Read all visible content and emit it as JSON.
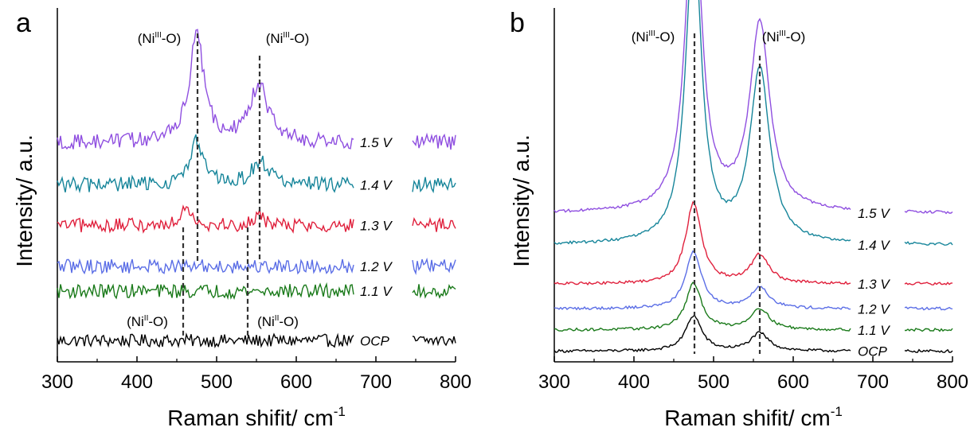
{
  "colors": {
    "OCP": "#000000",
    "1.1 V": "#1a7a1a",
    "1.2 V": "#5b6ee6",
    "1.3 V": "#e0203c",
    "1.4 V": "#16859a",
    "1.5 V": "#8f4fe0"
  },
  "chart_data": [
    {
      "type": "line",
      "panel": "a",
      "xlabel": "Raman shifit/ cm",
      "xlabel_sup": "-1",
      "ylabel": "Intensity/ a.u.",
      "xlim": [
        300,
        800
      ],
      "x_ticks": [
        "300",
        "400",
        "500",
        "600",
        "700",
        "800"
      ],
      "x_gap": [
        673,
        745
      ],
      "series": [
        {
          "name": "OCP",
          "baseline": 0.06,
          "noise": 0.018,
          "peaks": []
        },
        {
          "name": "1.1 V",
          "baseline": 0.2,
          "noise": 0.02,
          "peaks": []
        },
        {
          "name": "1.2 V",
          "baseline": 0.27,
          "noise": 0.02,
          "peaks": []
        },
        {
          "name": "1.3 V",
          "baseline": 0.385,
          "noise": 0.02,
          "peaks": [
            [
              462,
              0.06,
              8
            ],
            [
              555,
              0.035,
              6
            ]
          ]
        },
        {
          "name": "1.4 V",
          "baseline": 0.5,
          "noise": 0.022,
          "peaks": [
            [
              475,
              0.12,
              10
            ],
            [
              555,
              0.07,
              12
            ]
          ]
        },
        {
          "name": "1.5 V",
          "baseline": 0.62,
          "noise": 0.022,
          "peaks": [
            [
              475,
              0.3,
              11
            ],
            [
              553,
              0.16,
              14
            ]
          ]
        }
      ],
      "annotations": [
        {
          "label": "Ni",
          "sup": "III",
          "suffix": "-O",
          "x": 476
        },
        {
          "label": "Ni",
          "sup": "III",
          "suffix": "-O",
          "x": 554
        },
        {
          "label": "Ni",
          "sup": "II",
          "suffix": "-O",
          "x": 458
        },
        {
          "label": "Ni",
          "sup": "II",
          "suffix": "-O",
          "x": 539
        }
      ]
    },
    {
      "type": "line",
      "panel": "b",
      "xlabel": "Raman shifit/ cm",
      "xlabel_sup": "-1",
      "ylabel": "Intensity/ a.u.",
      "xlim": [
        300,
        800
      ],
      "x_ticks": [
        "300",
        "400",
        "500",
        "600",
        "700",
        "800"
      ],
      "x_gap": [
        673,
        740
      ],
      "series": [
        {
          "name": "OCP",
          "baseline": 0.03,
          "noise": 0.004,
          "peaks": [
            [
              475,
              0.1,
              12
            ],
            [
              558,
              0.05,
              14
            ]
          ]
        },
        {
          "name": "1.1 V",
          "baseline": 0.09,
          "noise": 0.004,
          "peaks": [
            [
              475,
              0.13,
              12
            ],
            [
              558,
              0.06,
              14
            ]
          ]
        },
        {
          "name": "1.2 V",
          "baseline": 0.15,
          "noise": 0.004,
          "peaks": [
            [
              475,
              0.16,
              12
            ],
            [
              558,
              0.06,
              14
            ]
          ]
        },
        {
          "name": "1.3 V",
          "baseline": 0.22,
          "noise": 0.004,
          "peaks": [
            [
              475,
              0.23,
              12
            ],
            [
              558,
              0.08,
              14
            ]
          ]
        },
        {
          "name": "1.4 V",
          "baseline": 0.33,
          "noise": 0.004,
          "peaks": [
            [
              475,
              0.87,
              12
            ],
            [
              558,
              0.49,
              15
            ]
          ]
        },
        {
          "name": "1.5 V",
          "baseline": 0.42,
          "noise": 0.004,
          "peaks": [
            [
              475,
              0.92,
              12
            ],
            [
              558,
              0.53,
              15
            ]
          ]
        }
      ],
      "annotations": [
        {
          "label": "Ni",
          "sup": "III",
          "suffix": "-O",
          "x": 476
        },
        {
          "label": "Ni",
          "sup": "III",
          "suffix": "-O",
          "x": 558
        }
      ]
    }
  ],
  "panels": [
    {
      "letter": "a"
    },
    {
      "letter": "b"
    }
  ]
}
